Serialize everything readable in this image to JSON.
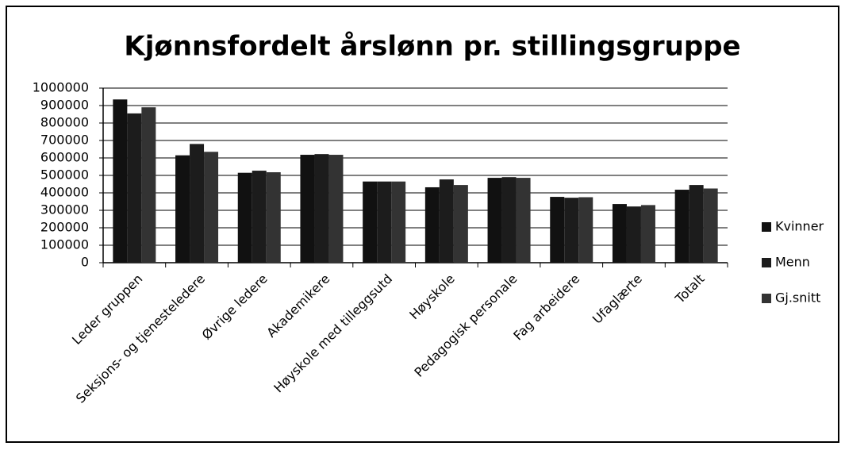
{
  "chart_data": {
    "type": "bar",
    "title": "Kjønnsfordelt årslønn pr. stillingsgruppe",
    "categories": [
      "Leder gruppen",
      "Seksjons- og tjenesteledere",
      "Øvrige ledere",
      "Akademikere",
      "Høyskole med tilleggsutd",
      "Høyskole",
      "Pedagogisk personale",
      "Fag arbeidere",
      "Ufaglærte",
      "Totalt"
    ],
    "series": [
      {
        "name": "Kvinner",
        "color": "#111111",
        "values": [
          935000,
          615000,
          515000,
          618000,
          465000,
          432000,
          486000,
          377000,
          336000,
          418000
        ]
      },
      {
        "name": "Menn",
        "color": "#1c1c1c",
        "values": [
          855000,
          680000,
          527000,
          622000,
          465000,
          477000,
          490000,
          372000,
          322000,
          445000
        ]
      },
      {
        "name": "Gj.snitt",
        "color": "#333333",
        "values": [
          890000,
          635000,
          518000,
          618000,
          465000,
          445000,
          486000,
          375000,
          330000,
          425000
        ]
      }
    ],
    "ylim": [
      0,
      1000000
    ],
    "yticks": [
      0,
      100000,
      200000,
      300000,
      400000,
      500000,
      600000,
      700000,
      800000,
      900000,
      1000000
    ],
    "grid": true,
    "legend": "right"
  }
}
